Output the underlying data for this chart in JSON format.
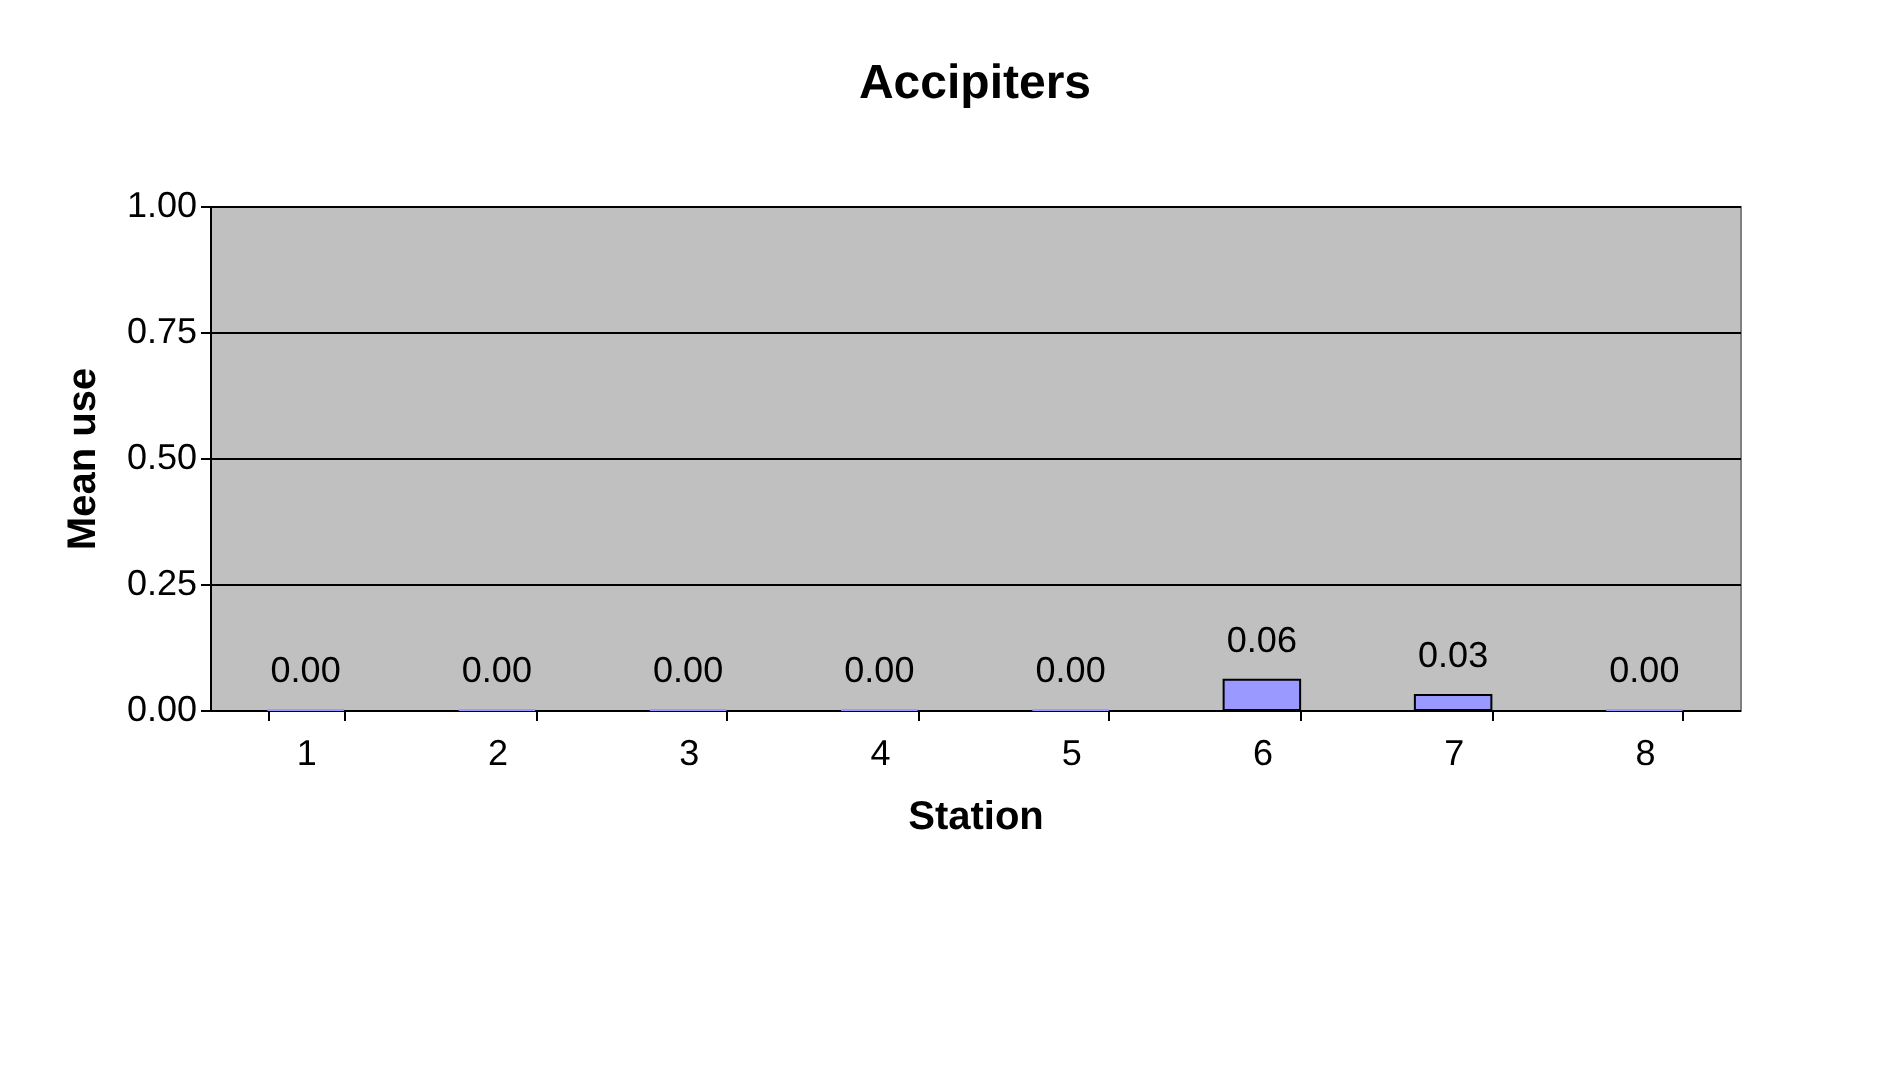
{
  "chart_data": {
    "type": "bar",
    "title": "Accipiters",
    "xlabel": "Station",
    "ylabel": "Mean use",
    "categories": [
      "1",
      "2",
      "3",
      "4",
      "5",
      "6",
      "7",
      "8"
    ],
    "series": [
      {
        "color": "#9999ff",
        "values": [
          0,
          0,
          0,
          0,
          0,
          0.06,
          0.03,
          0
        ],
        "value_labels": [
          "0.00",
          "0.00",
          "0.00",
          "0.00",
          "0.00",
          "0.06",
          "0.03",
          "0.00"
        ]
      }
    ],
    "ylim": [
      0,
      1
    ],
    "yticks": [
      {
        "value": 0,
        "label": "0.00"
      },
      {
        "value": 0.25,
        "label": "0.25"
      },
      {
        "value": 0.5,
        "label": "0.50"
      },
      {
        "value": 0.75,
        "label": "0.75"
      },
      {
        "value": 1,
        "label": "1.00"
      }
    ],
    "grid": "y"
  }
}
